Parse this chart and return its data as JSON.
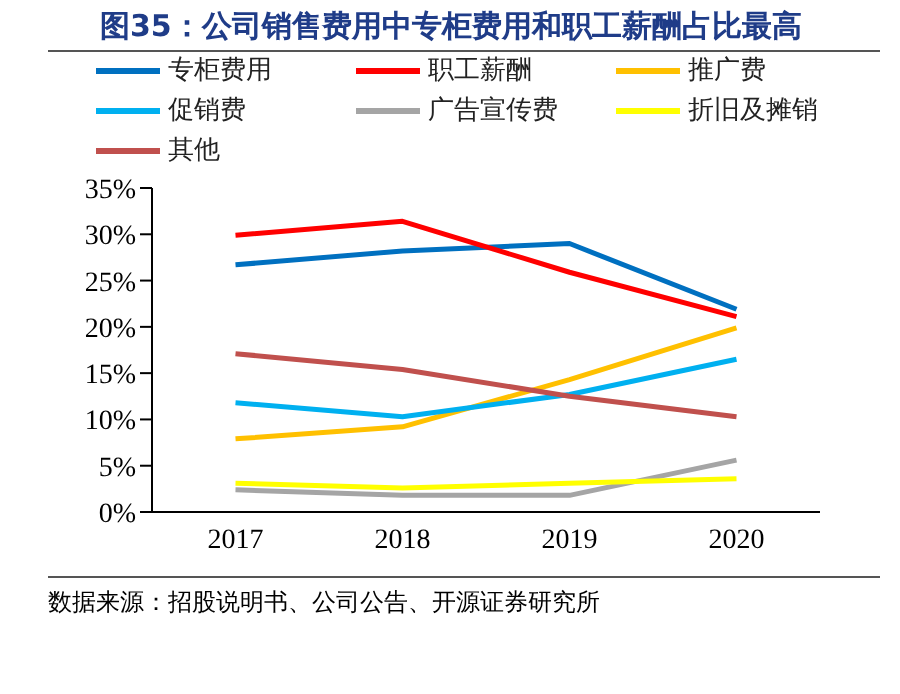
{
  "chart_data": {
    "type": "line",
    "title": "图35：公司销售费用中专柜费用和职工薪酬占比最高",
    "categories": [
      "2017",
      "2018",
      "2019",
      "2020"
    ],
    "series": [
      {
        "name": "专柜费用",
        "color": "#0070c0",
        "values": [
          26.7,
          28.2,
          29.0,
          21.9
        ]
      },
      {
        "name": "职工薪酬",
        "color": "#ff0000",
        "values": [
          29.9,
          31.4,
          25.9,
          21.1
        ]
      },
      {
        "name": "推广费",
        "color": "#ffc000",
        "values": [
          7.9,
          9.2,
          14.3,
          19.9
        ]
      },
      {
        "name": "促销费",
        "color": "#00b0f0",
        "values": [
          11.8,
          10.3,
          12.7,
          16.5
        ]
      },
      {
        "name": "广告宣传费",
        "color": "#a5a5a5",
        "values": [
          2.4,
          1.8,
          1.8,
          5.6
        ]
      },
      {
        "name": "折旧及摊销",
        "color": "#ffff00",
        "values": [
          3.1,
          2.6,
          3.1,
          3.6
        ]
      },
      {
        "name": "其他",
        "color": "#c0504d",
        "values": [
          17.1,
          15.4,
          12.5,
          10.3
        ]
      }
    ],
    "ylim": [
      0,
      35
    ],
    "yticks": [
      {
        "value": 0,
        "label": "0%"
      },
      {
        "value": 5,
        "label": "5%"
      },
      {
        "value": 10,
        "label": "10%"
      },
      {
        "value": 15,
        "label": "15%"
      },
      {
        "value": 20,
        "label": "20%"
      },
      {
        "value": 25,
        "label": "25%"
      },
      {
        "value": 30,
        "label": "30%"
      },
      {
        "value": 35,
        "label": "35%"
      }
    ],
    "grid": false,
    "legend": "top",
    "marker": "none",
    "line_style": "solid",
    "annotations": [
      "数据来源：招股说明书、公司公告、开源证券研究所"
    ]
  }
}
